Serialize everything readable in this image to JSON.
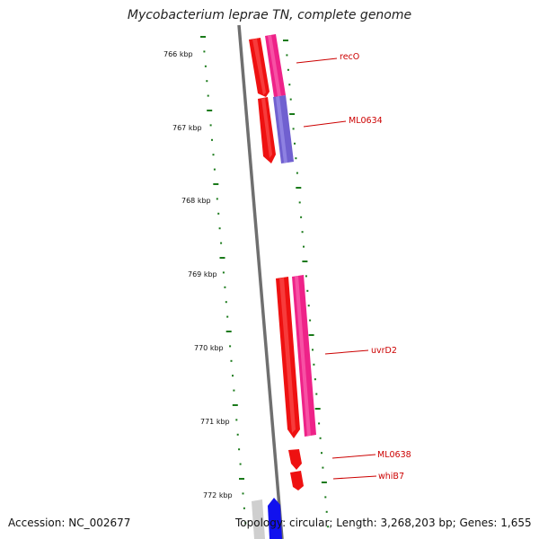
{
  "title": "Mycobacterium leprae TN, complete genome",
  "footer": {
    "accession": "Accession: NC_002677",
    "topology": "Topology: circular; Length: 3,268,203 bp; Genes: 1,655"
  },
  "colors": {
    "backbone": "#8a8a8a",
    "ticks": "#1a7a1a",
    "red_gene": "#ee1111",
    "magenta_gene": "#ee2288",
    "purple_gene": "#7060d0",
    "blue_gene": "#1111ee",
    "gray_gene": "#cfcfcf",
    "label": "#cc0000"
  },
  "kbp_labels": [
    "766 kbp",
    "767 kbp",
    "768 kbp",
    "769 kbp",
    "770 kbp",
    "771 kbp",
    "772 kbp"
  ],
  "gene_labels": [
    "recO",
    "ML0634",
    "uvrD2",
    "ML0638",
    "whiB7"
  ]
}
